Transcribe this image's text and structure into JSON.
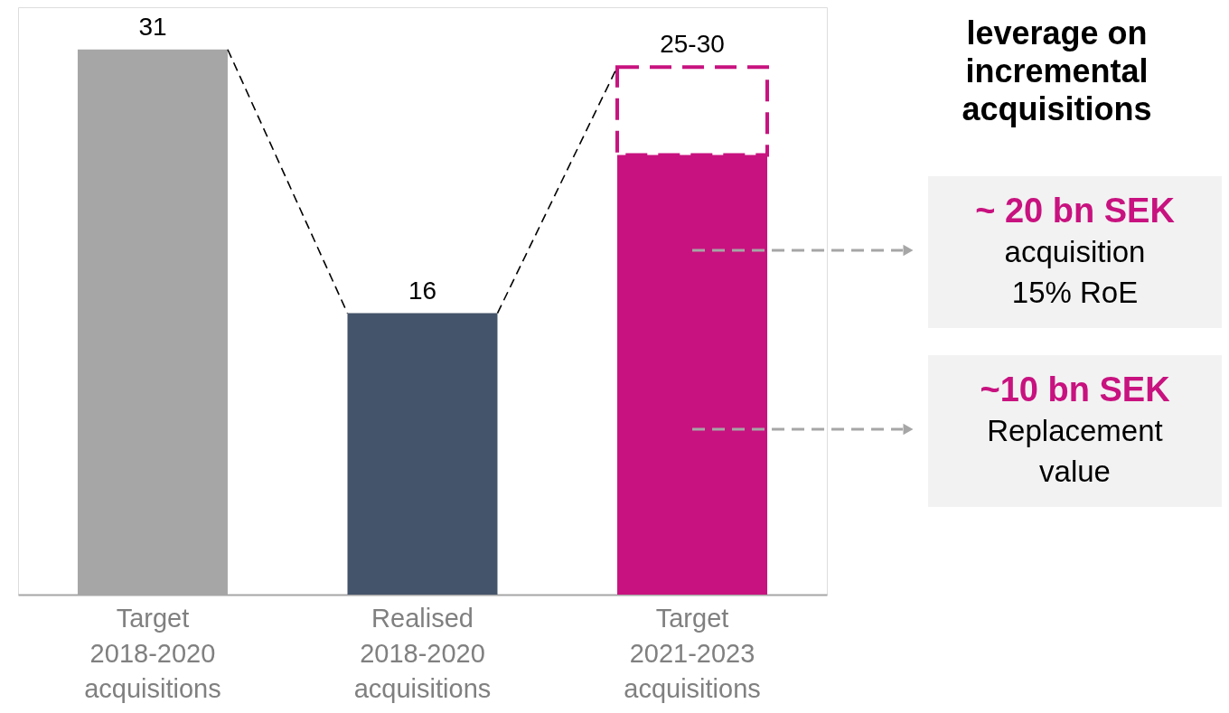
{
  "chart_data": {
    "type": "bar",
    "stacked": true,
    "categories": [
      "Target 2018-2020 acquisitions",
      "Realised 2018-2020 acquisitions",
      "Target 2021-2023 acquisitions"
    ],
    "series": [
      {
        "colors": [
          "#a6a6a6",
          "#44546a",
          "#c8127f"
        ],
        "values": [
          31,
          16,
          25
        ],
        "value_labels": [
          "31",
          "16",
          null
        ]
      },
      {
        "color": "#c8127f",
        "line_style": "dashed",
        "values": [
          null,
          null,
          5
        ],
        "value_labels": [
          null,
          null,
          "25-30"
        ]
      }
    ],
    "tick_labels": "x",
    "annotations": [
      "leverage on\nincremental\nacquisitions",
      "~ 20 bn SEK\nacquisition\n15% RoE",
      "~10 bn SEK\nReplacement\nvalue"
    ]
  }
}
